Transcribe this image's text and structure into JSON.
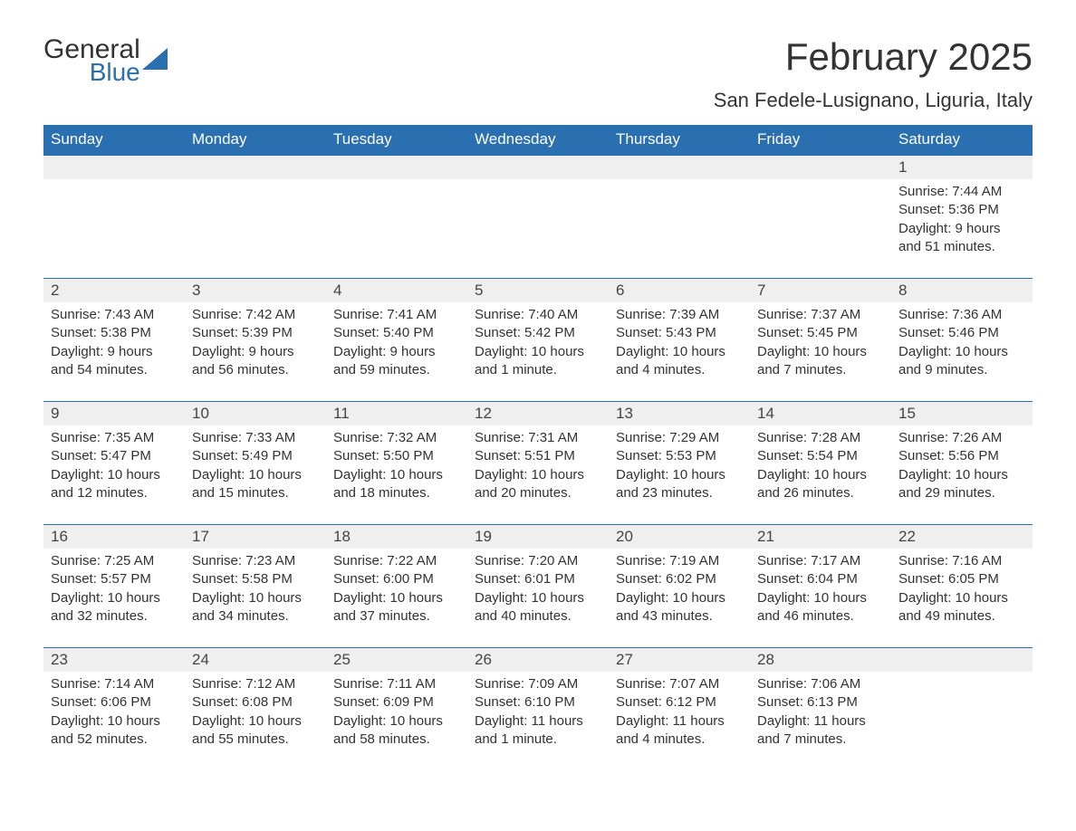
{
  "logo": {
    "main": "General",
    "sub": "Blue",
    "triangle_color": "#2a6fb0"
  },
  "title": "February 2025",
  "location": "San Fedele-Lusignano, Liguria, Italy",
  "colors": {
    "header_bg": "#2a6fb0",
    "header_text": "#ffffff",
    "daynum_bg": "#efefef",
    "text": "#333333",
    "page_bg": "#ffffff",
    "week_border": "#2a6fb0"
  },
  "layout": {
    "columns": 7,
    "rows": 5,
    "day_header_fontsize": 17,
    "daynum_fontsize": 17,
    "body_fontsize": 15,
    "title_fontsize": 42,
    "location_fontsize": 22
  },
  "weekdays": [
    "Sunday",
    "Monday",
    "Tuesday",
    "Wednesday",
    "Thursday",
    "Friday",
    "Saturday"
  ],
  "weeks": [
    [
      {
        "day": "",
        "sunrise": "",
        "sunset": "",
        "daylight": ""
      },
      {
        "day": "",
        "sunrise": "",
        "sunset": "",
        "daylight": ""
      },
      {
        "day": "",
        "sunrise": "",
        "sunset": "",
        "daylight": ""
      },
      {
        "day": "",
        "sunrise": "",
        "sunset": "",
        "daylight": ""
      },
      {
        "day": "",
        "sunrise": "",
        "sunset": "",
        "daylight": ""
      },
      {
        "day": "",
        "sunrise": "",
        "sunset": "",
        "daylight": ""
      },
      {
        "day": "1",
        "sunrise": "Sunrise: 7:44 AM",
        "sunset": "Sunset: 5:36 PM",
        "daylight": "Daylight: 9 hours and 51 minutes."
      }
    ],
    [
      {
        "day": "2",
        "sunrise": "Sunrise: 7:43 AM",
        "sunset": "Sunset: 5:38 PM",
        "daylight": "Daylight: 9 hours and 54 minutes."
      },
      {
        "day": "3",
        "sunrise": "Sunrise: 7:42 AM",
        "sunset": "Sunset: 5:39 PM",
        "daylight": "Daylight: 9 hours and 56 minutes."
      },
      {
        "day": "4",
        "sunrise": "Sunrise: 7:41 AM",
        "sunset": "Sunset: 5:40 PM",
        "daylight": "Daylight: 9 hours and 59 minutes."
      },
      {
        "day": "5",
        "sunrise": "Sunrise: 7:40 AM",
        "sunset": "Sunset: 5:42 PM",
        "daylight": "Daylight: 10 hours and 1 minute."
      },
      {
        "day": "6",
        "sunrise": "Sunrise: 7:39 AM",
        "sunset": "Sunset: 5:43 PM",
        "daylight": "Daylight: 10 hours and 4 minutes."
      },
      {
        "day": "7",
        "sunrise": "Sunrise: 7:37 AM",
        "sunset": "Sunset: 5:45 PM",
        "daylight": "Daylight: 10 hours and 7 minutes."
      },
      {
        "day": "8",
        "sunrise": "Sunrise: 7:36 AM",
        "sunset": "Sunset: 5:46 PM",
        "daylight": "Daylight: 10 hours and 9 minutes."
      }
    ],
    [
      {
        "day": "9",
        "sunrise": "Sunrise: 7:35 AM",
        "sunset": "Sunset: 5:47 PM",
        "daylight": "Daylight: 10 hours and 12 minutes."
      },
      {
        "day": "10",
        "sunrise": "Sunrise: 7:33 AM",
        "sunset": "Sunset: 5:49 PM",
        "daylight": "Daylight: 10 hours and 15 minutes."
      },
      {
        "day": "11",
        "sunrise": "Sunrise: 7:32 AM",
        "sunset": "Sunset: 5:50 PM",
        "daylight": "Daylight: 10 hours and 18 minutes."
      },
      {
        "day": "12",
        "sunrise": "Sunrise: 7:31 AM",
        "sunset": "Sunset: 5:51 PM",
        "daylight": "Daylight: 10 hours and 20 minutes."
      },
      {
        "day": "13",
        "sunrise": "Sunrise: 7:29 AM",
        "sunset": "Sunset: 5:53 PM",
        "daylight": "Daylight: 10 hours and 23 minutes."
      },
      {
        "day": "14",
        "sunrise": "Sunrise: 7:28 AM",
        "sunset": "Sunset: 5:54 PM",
        "daylight": "Daylight: 10 hours and 26 minutes."
      },
      {
        "day": "15",
        "sunrise": "Sunrise: 7:26 AM",
        "sunset": "Sunset: 5:56 PM",
        "daylight": "Daylight: 10 hours and 29 minutes."
      }
    ],
    [
      {
        "day": "16",
        "sunrise": "Sunrise: 7:25 AM",
        "sunset": "Sunset: 5:57 PM",
        "daylight": "Daylight: 10 hours and 32 minutes."
      },
      {
        "day": "17",
        "sunrise": "Sunrise: 7:23 AM",
        "sunset": "Sunset: 5:58 PM",
        "daylight": "Daylight: 10 hours and 34 minutes."
      },
      {
        "day": "18",
        "sunrise": "Sunrise: 7:22 AM",
        "sunset": "Sunset: 6:00 PM",
        "daylight": "Daylight: 10 hours and 37 minutes."
      },
      {
        "day": "19",
        "sunrise": "Sunrise: 7:20 AM",
        "sunset": "Sunset: 6:01 PM",
        "daylight": "Daylight: 10 hours and 40 minutes."
      },
      {
        "day": "20",
        "sunrise": "Sunrise: 7:19 AM",
        "sunset": "Sunset: 6:02 PM",
        "daylight": "Daylight: 10 hours and 43 minutes."
      },
      {
        "day": "21",
        "sunrise": "Sunrise: 7:17 AM",
        "sunset": "Sunset: 6:04 PM",
        "daylight": "Daylight: 10 hours and 46 minutes."
      },
      {
        "day": "22",
        "sunrise": "Sunrise: 7:16 AM",
        "sunset": "Sunset: 6:05 PM",
        "daylight": "Daylight: 10 hours and 49 minutes."
      }
    ],
    [
      {
        "day": "23",
        "sunrise": "Sunrise: 7:14 AM",
        "sunset": "Sunset: 6:06 PM",
        "daylight": "Daylight: 10 hours and 52 minutes."
      },
      {
        "day": "24",
        "sunrise": "Sunrise: 7:12 AM",
        "sunset": "Sunset: 6:08 PM",
        "daylight": "Daylight: 10 hours and 55 minutes."
      },
      {
        "day": "25",
        "sunrise": "Sunrise: 7:11 AM",
        "sunset": "Sunset: 6:09 PM",
        "daylight": "Daylight: 10 hours and 58 minutes."
      },
      {
        "day": "26",
        "sunrise": "Sunrise: 7:09 AM",
        "sunset": "Sunset: 6:10 PM",
        "daylight": "Daylight: 11 hours and 1 minute."
      },
      {
        "day": "27",
        "sunrise": "Sunrise: 7:07 AM",
        "sunset": "Sunset: 6:12 PM",
        "daylight": "Daylight: 11 hours and 4 minutes."
      },
      {
        "day": "28",
        "sunrise": "Sunrise: 7:06 AM",
        "sunset": "Sunset: 6:13 PM",
        "daylight": "Daylight: 11 hours and 7 minutes."
      },
      {
        "day": "",
        "sunrise": "",
        "sunset": "",
        "daylight": ""
      }
    ]
  ]
}
